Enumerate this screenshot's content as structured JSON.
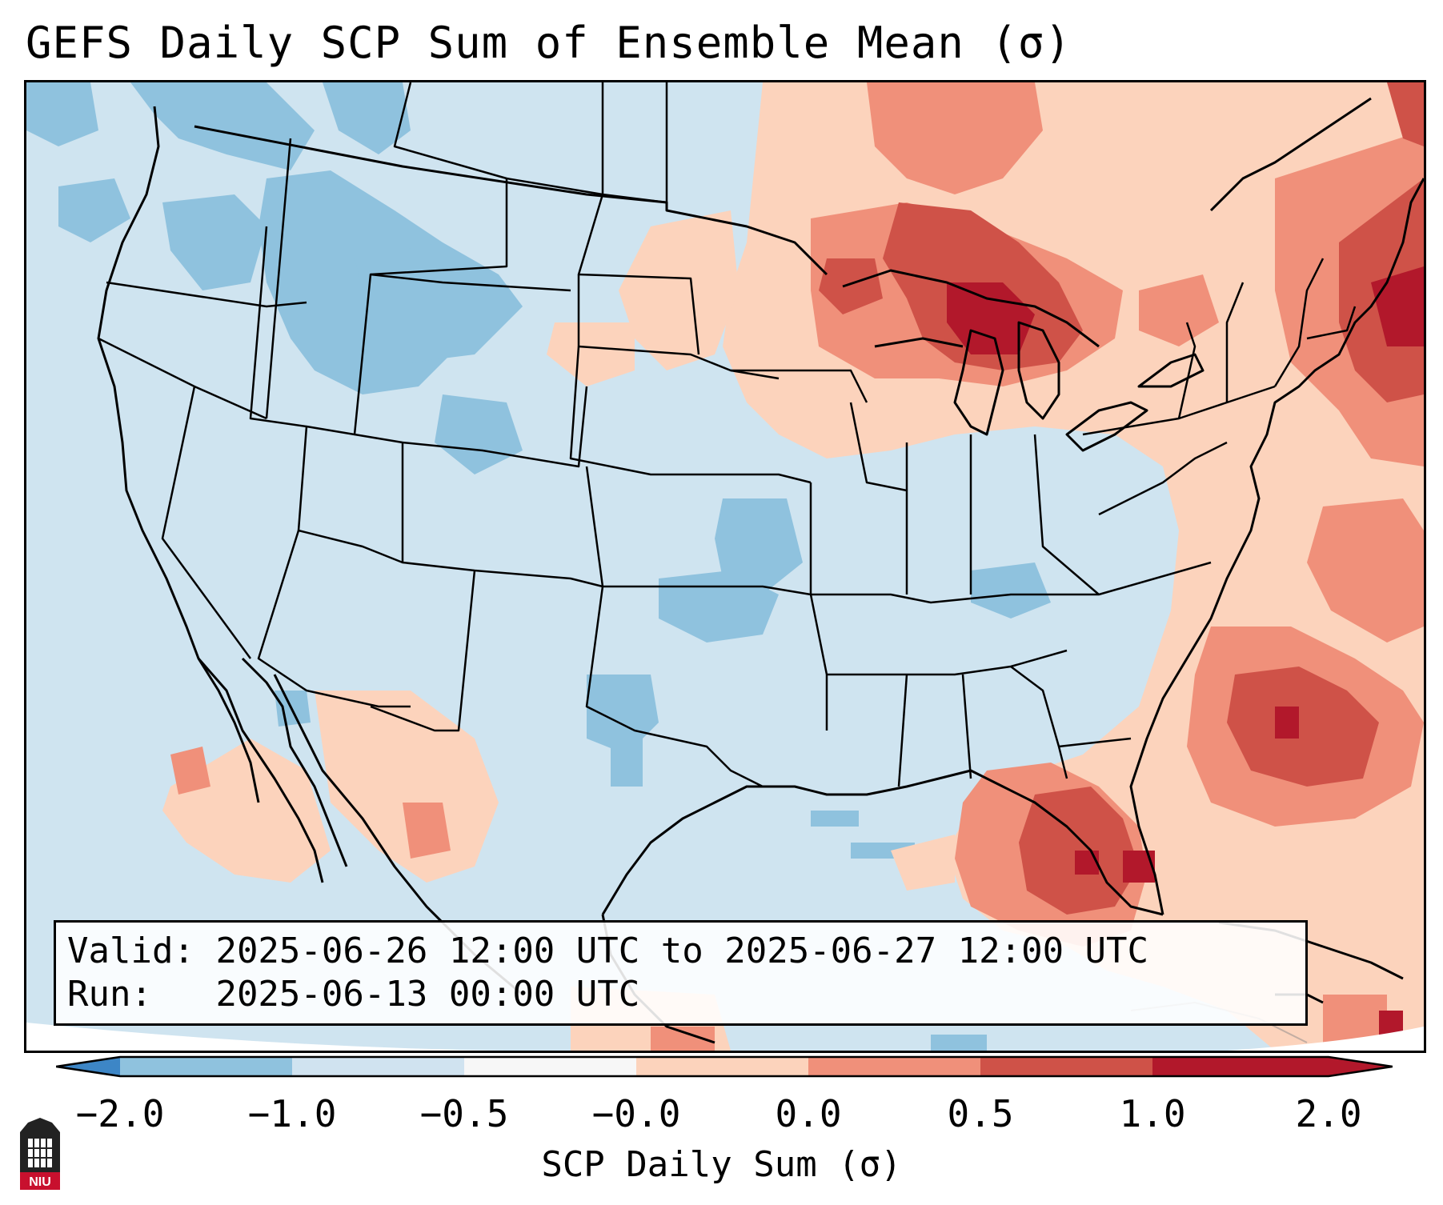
{
  "title": "GEFS Daily SCP Sum of Ensemble Mean (σ)",
  "info": {
    "valid_label": "Valid:",
    "valid_value": "2025-06-26 12:00 UTC to 2025-06-27 12:00 UTC",
    "run_label": "Run:",
    "run_value": "2025-06-13 00:00 UTC"
  },
  "colorbar": {
    "label": "SCP Daily Sum (σ)",
    "ticks": [
      "−2.0",
      "−1.0",
      "−0.5",
      "−0.0",
      "0.0",
      "0.5",
      "1.0",
      "2.0"
    ],
    "colors": [
      "#3d86c6",
      "#8fc2de",
      "#d0e3f0",
      "#f7f7f7",
      "#fcd3bc",
      "#f0907a",
      "#cf5248",
      "#b2182b"
    ]
  },
  "map": {
    "region": "Contiguous United States",
    "palette": {
      "neg_strong": "#8fc2de",
      "neg_weak": "#d0e3f0",
      "pos_weak": "#fcd3bc",
      "pos_mid": "#f0907a",
      "pos_strong": "#cf5248",
      "pos_max": "#b2182b"
    }
  },
  "logo": {
    "text": "NIU"
  }
}
